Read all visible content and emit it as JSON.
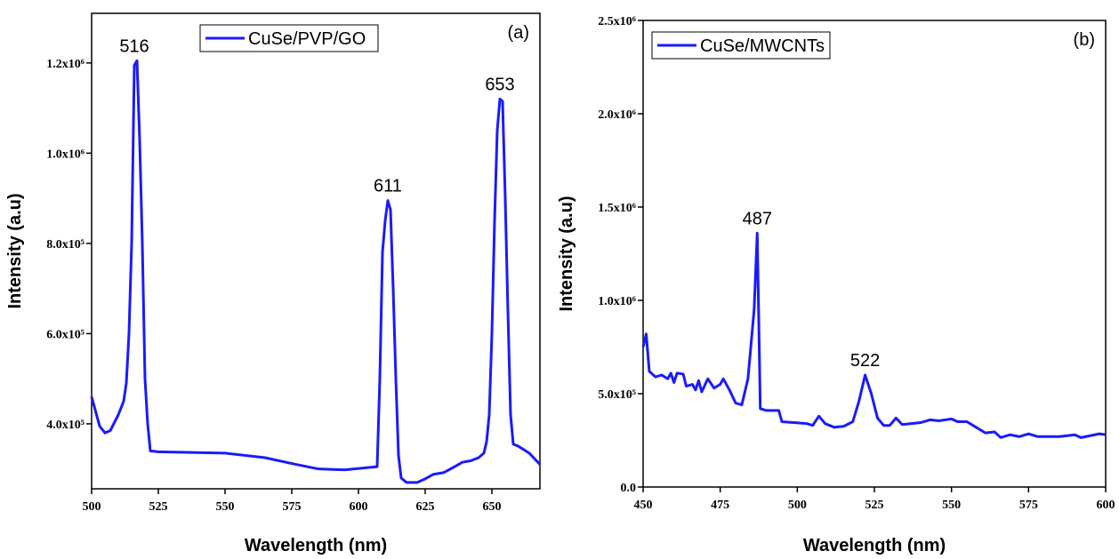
{
  "chart_data": [
    {
      "type": "line",
      "panel_label": "(a)",
      "xlabel": "Wavelength (nm)",
      "ylabel": "Intensity (a.u)",
      "xlim": [
        500,
        668
      ],
      "xticks": [
        500,
        525,
        550,
        575,
        600,
        625,
        650
      ],
      "ylim": [
        256000,
        1310000
      ],
      "yticks": [
        {
          "value": 400000,
          "label": "4.0x10⁵"
        },
        {
          "value": 600000,
          "label": "6.0x10⁵"
        },
        {
          "value": 800000,
          "label": "8.0x10⁵"
        },
        {
          "value": 1000000,
          "label": "1.0x10⁶"
        },
        {
          "value": 1200000,
          "label": "1.2x10⁶"
        }
      ],
      "legend": "upper center",
      "x": [
        500,
        503,
        505,
        507,
        510,
        512,
        513,
        514,
        515,
        516,
        517,
        518,
        519,
        520,
        521,
        522,
        525,
        550,
        565,
        575,
        585,
        595,
        607,
        608,
        609,
        610,
        611,
        612,
        613,
        614,
        615,
        616,
        618,
        622,
        625,
        628,
        632,
        636,
        639,
        642,
        645,
        647,
        648,
        649,
        650,
        651,
        652,
        653,
        654,
        655,
        656,
        657,
        658,
        660,
        664,
        668
      ],
      "series": [
        {
          "name": "CuSe/PVP/GO",
          "color": "#1a1aff",
          "values": [
            460000,
            395000,
            380000,
            385000,
            420000,
            450000,
            490000,
            600000,
            800000,
            1195000,
            1205000,
            1030000,
            800000,
            500000,
            400000,
            340000,
            338000,
            335000,
            325000,
            312000,
            300000,
            298000,
            305000,
            500000,
            780000,
            850000,
            895000,
            875000,
            700000,
            500000,
            330000,
            280000,
            270000,
            270000,
            278000,
            288000,
            292000,
            305000,
            315000,
            318000,
            325000,
            335000,
            360000,
            420000,
            600000,
            850000,
            1050000,
            1120000,
            1115000,
            900000,
            650000,
            420000,
            355000,
            350000,
            335000,
            310000
          ]
        }
      ],
      "annotations": [
        {
          "label": "516",
          "x": 516,
          "y": 1205000
        },
        {
          "label": "611",
          "x": 611,
          "y": 895000
        },
        {
          "label": "653",
          "x": 653,
          "y": 1120000
        }
      ]
    },
    {
      "type": "line",
      "panel_label": "(b)",
      "xlabel": "Wavelength (nm)",
      "ylabel": "Intensity (a.u)",
      "xlim": [
        450,
        600
      ],
      "xticks": [
        450,
        475,
        500,
        525,
        550,
        575,
        600
      ],
      "ylim": [
        0,
        2500000
      ],
      "yticks": [
        {
          "value": 0,
          "label": "0.0"
        },
        {
          "value": 500000,
          "label": "5.0x10⁵"
        },
        {
          "value": 1000000,
          "label": "1.0x10⁶"
        },
        {
          "value": 1500000,
          "label": "1.5x10⁶"
        },
        {
          "value": 2000000,
          "label": "2.0x10⁶"
        },
        {
          "value": 2500000,
          "label": "2.5x10⁶"
        }
      ],
      "legend": "upper left",
      "x": [
        450,
        451,
        452,
        454,
        456,
        458,
        459,
        460,
        461,
        463,
        464,
        466,
        467,
        468,
        469,
        471,
        473,
        475,
        476,
        478,
        480,
        482,
        484,
        486,
        487,
        487.5,
        488,
        490,
        494,
        495,
        499,
        503,
        505,
        507,
        509,
        512,
        515,
        518,
        520,
        522,
        524,
        526,
        528,
        530,
        532,
        534,
        537,
        540,
        543,
        546,
        550,
        552,
        555,
        558,
        561,
        564,
        566,
        569,
        572,
        575,
        578,
        585,
        590,
        592,
        595,
        598,
        600
      ],
      "series": [
        {
          "name": "CuSe/MWCNTs",
          "color": "#1a1aff",
          "values": [
            750000,
            820000,
            620000,
            590000,
            600000,
            580000,
            610000,
            560000,
            610000,
            605000,
            540000,
            550000,
            520000,
            570000,
            510000,
            580000,
            530000,
            550000,
            580000,
            520000,
            450000,
            440000,
            580000,
            950000,
            1360000,
            900000,
            420000,
            410000,
            410000,
            350000,
            345000,
            340000,
            330000,
            380000,
            340000,
            320000,
            325000,
            350000,
            460000,
            600000,
            500000,
            370000,
            330000,
            330000,
            370000,
            335000,
            340000,
            345000,
            360000,
            355000,
            365000,
            350000,
            350000,
            320000,
            290000,
            295000,
            265000,
            280000,
            270000,
            285000,
            270000,
            270000,
            280000,
            265000,
            275000,
            285000,
            280000
          ]
        }
      ],
      "annotations": [
        {
          "label": "487",
          "x": 487,
          "y": 1360000
        },
        {
          "label": "522",
          "x": 522,
          "y": 600000
        }
      ]
    }
  ]
}
